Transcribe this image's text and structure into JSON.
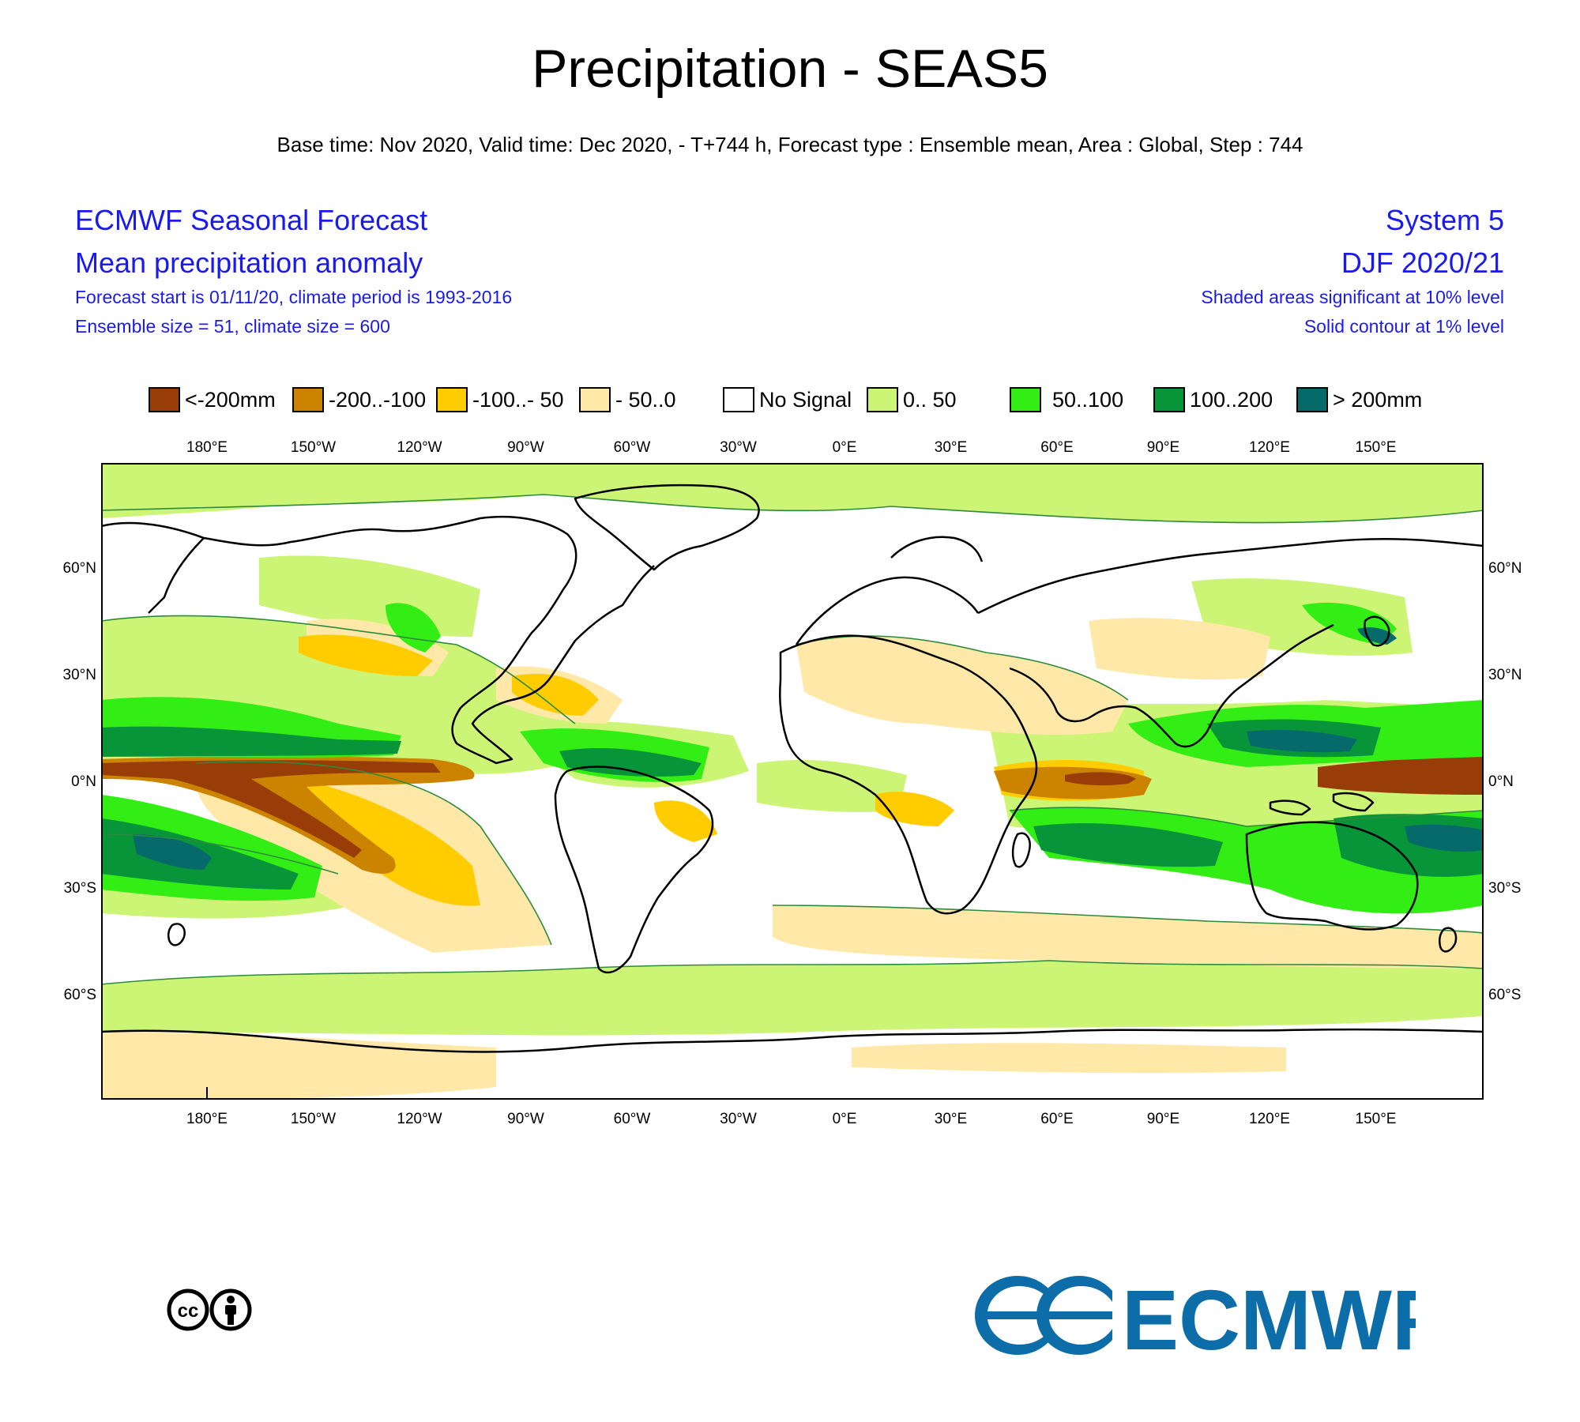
{
  "title": "Precipitation - SEAS5",
  "subtitle": "Base time: Nov 2020, Valid time: Dec 2020, - T+744 h, Forecast type : Ensemble mean, Area : Global, Step : 744",
  "header_left": {
    "line1": "ECMWF Seasonal Forecast",
    "line2": "Mean precipitation anomaly",
    "line3": "Forecast start is 01/11/20, climate period is 1993-2016",
    "line4": "Ensemble size = 51, climate size = 600"
  },
  "header_right": {
    "line1": "System 5",
    "line2": "DJF 2020/21",
    "line3": "Shaded areas significant at 10% level",
    "line4": "Solid contour at 1% level"
  },
  "legend": [
    {
      "label": "<-200mm",
      "color": "#993d08"
    },
    {
      "label": "-200..-100",
      "color": "#cc8400"
    },
    {
      "label": "-100..- 50",
      "color": "#ffcc00"
    },
    {
      "label": "- 50..0",
      "color": "#ffe8a8"
    },
    {
      "label": "No Signal",
      "color": "#ffffff"
    },
    {
      "label": "0.. 50",
      "color": "#ccf575"
    },
    {
      "label": "50..100",
      "color": "#33ee14"
    },
    {
      "label": "100..200",
      "color": "#089438"
    },
    {
      "label": "> 200mm",
      "color": "#066a6a"
    }
  ],
  "axes": {
    "lon_labels": [
      "180°E",
      "150°W",
      "120°W",
      "90°W",
      "60°W",
      "30°W",
      "0°E",
      "30°E",
      "60°E",
      "90°E",
      "120°E",
      "150°E"
    ],
    "lat_labels": [
      "60°N",
      "30°N",
      "0°N",
      "30°S",
      "60°S"
    ]
  },
  "colors": {
    "header_text": "#1a1aee",
    "ecmwf_brand": "#0c6da8"
  },
  "icons": [
    "cc-icon",
    "by-icon",
    "ecmwf-logo-icon"
  ],
  "brand_text": "ECMWF"
}
